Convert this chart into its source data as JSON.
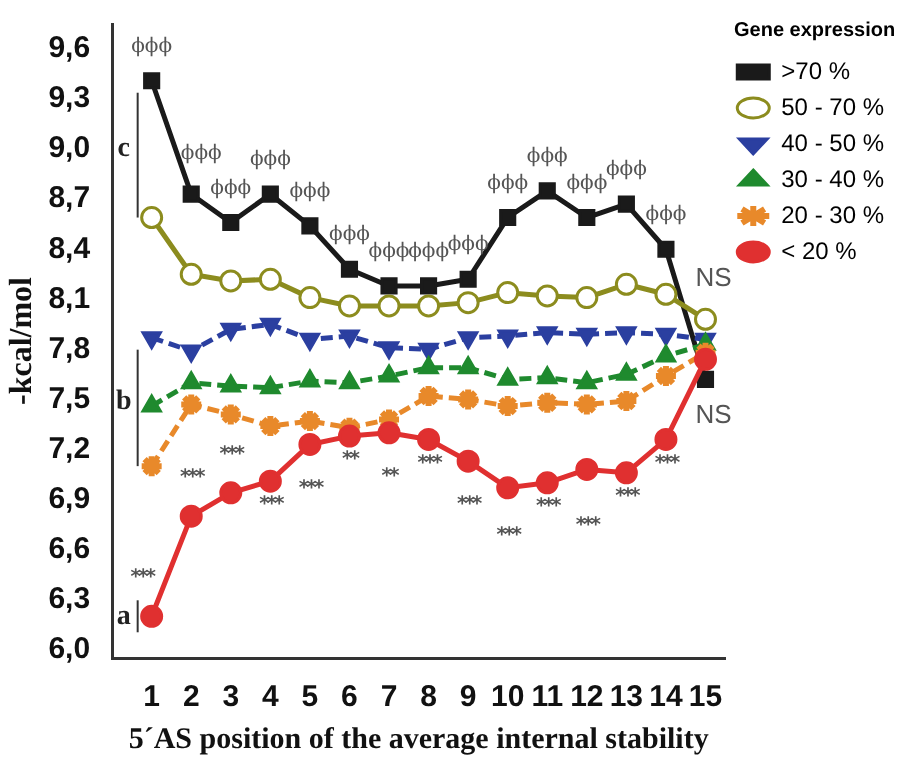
{
  "chart_data": {
    "type": "line",
    "xlabel": "5´AS position of the average internal stability",
    "ylabel": "-kcal/mol",
    "legend_title": "Gene expression",
    "x": [
      1,
      2,
      3,
      4,
      5,
      6,
      7,
      8,
      9,
      10,
      11,
      12,
      13,
      14,
      15
    ],
    "xlim": [
      0,
      15.5
    ],
    "xticks": [
      1,
      2,
      3,
      4,
      5,
      6,
      7,
      8,
      9,
      10,
      11,
      12,
      13,
      14,
      15
    ],
    "ylim": [
      5.95,
      9.75
    ],
    "yticks": [
      {
        "value": 6.0,
        "label": "6,0"
      },
      {
        "value": 6.3,
        "label": "6,3"
      },
      {
        "value": 6.6,
        "label": "6,6"
      },
      {
        "value": 6.9,
        "label": "6,9"
      },
      {
        "value": 7.2,
        "label": "7,2"
      },
      {
        "value": 7.5,
        "label": "7,5"
      },
      {
        "value": 7.8,
        "label": "7,8"
      },
      {
        "value": 8.1,
        "label": "8,1"
      },
      {
        "value": 8.4,
        "label": "8,4"
      },
      {
        "value": 8.7,
        "label": "8,7"
      },
      {
        "value": 9.0,
        "label": "9,0"
      },
      {
        "value": 9.3,
        "label": "9,3"
      },
      {
        "value": 9.6,
        "label": "9,6"
      }
    ],
    "grid": false,
    "legend": "top right",
    "series": [
      {
        "name": ">70 %",
        "color": "#1a1a1a",
        "marker": "square",
        "line_style": "solid",
        "values": [
          9.41,
          8.73,
          8.56,
          8.73,
          8.54,
          8.28,
          8.18,
          8.18,
          8.22,
          8.59,
          8.75,
          8.59,
          8.67,
          8.4,
          7.62
        ]
      },
      {
        "name": "50 - 70 %",
        "color": "#8c8c1e",
        "marker": "circle",
        "line_style": "solid",
        "values": [
          8.59,
          8.25,
          8.21,
          8.22,
          8.11,
          8.06,
          8.06,
          8.06,
          8.08,
          8.14,
          8.12,
          8.11,
          8.19,
          8.13,
          7.98
        ]
      },
      {
        "name": "40 - 50 %",
        "color": "#2b3fa0",
        "marker": "triangle",
        "line_style": "dashed",
        "values": [
          7.87,
          7.79,
          7.92,
          7.95,
          7.86,
          7.88,
          7.81,
          7.8,
          7.87,
          7.88,
          7.9,
          7.89,
          7.9,
          7.89,
          7.86
        ]
      },
      {
        "name": "30 - 40 %",
        "color": "#1f8a2e",
        "marker": "triangle",
        "line_style": "dashed",
        "values": [
          7.46,
          7.6,
          7.58,
          7.57,
          7.61,
          7.6,
          7.64,
          7.69,
          7.69,
          7.62,
          7.63,
          7.6,
          7.65,
          7.76,
          7.83
        ]
      },
      {
        "name": "20 - 30 %",
        "color": "#e8892a",
        "marker": "cross",
        "line_style": "dashed",
        "values": [
          7.1,
          7.47,
          7.41,
          7.34,
          7.37,
          7.33,
          7.38,
          7.52,
          7.5,
          7.46,
          7.48,
          7.47,
          7.49,
          7.64,
          7.78
        ]
      },
      {
        "name": "< 20 %",
        "color": "#e03030",
        "marker": "circle",
        "line_style": "solid",
        "values": [
          6.2,
          6.8,
          6.94,
          7.01,
          7.23,
          7.28,
          7.3,
          7.26,
          7.13,
          6.97,
          7.0,
          7.08,
          7.06,
          7.26,
          7.74
        ]
      }
    ],
    "annotations": [
      "ϕϕϕ",
      "ϕϕϕ",
      "ϕϕϕ",
      "ϕϕϕ",
      "ϕϕϕ",
      "ϕϕϕ",
      "ϕϕϕ",
      "ϕϕϕ",
      "ϕϕϕ",
      "ϕϕϕ",
      "ϕϕϕ",
      "ϕϕϕ",
      "ϕϕϕ",
      "ϕϕϕ",
      "***",
      "***",
      "***",
      "***",
      "***",
      "**",
      "**",
      "***",
      "***",
      "***",
      "***",
      "***",
      "***",
      "***",
      "NS",
      "NS",
      "c",
      "b",
      "a"
    ]
  }
}
